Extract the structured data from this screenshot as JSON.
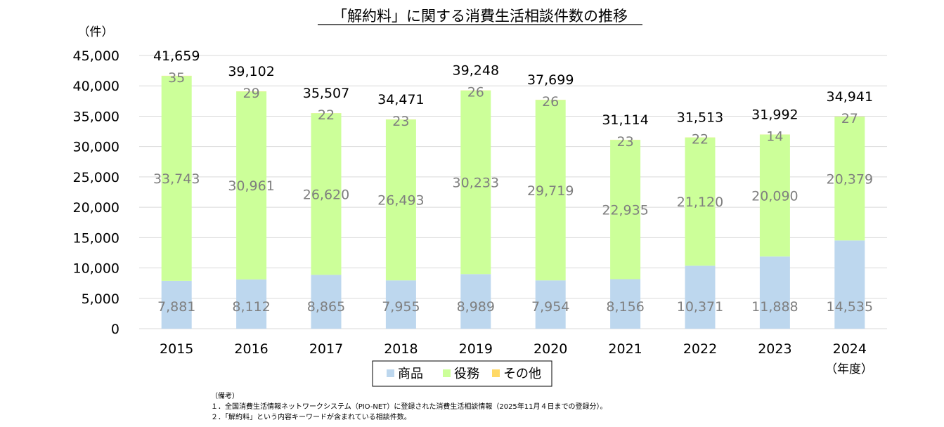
{
  "chart_data": {
    "type": "bar",
    "stacked": true,
    "title": "「解約料」に関する消費生活相談件数の推移",
    "ylabel": "（件）",
    "xlabel": "（年度）",
    "ylim": [
      0,
      45000
    ],
    "yticks": [
      0,
      5000,
      10000,
      15000,
      20000,
      25000,
      30000,
      35000,
      40000,
      45000
    ],
    "ytick_labels": [
      "0",
      "5,000",
      "10,000",
      "15,000",
      "20,000",
      "25,000",
      "30,000",
      "35,000",
      "40,000",
      "45,000"
    ],
    "grid": true,
    "legend_position": "bottom",
    "categories": [
      "2015",
      "2016",
      "2017",
      "2018",
      "2019",
      "2020",
      "2021",
      "2022",
      "2023",
      "2024"
    ],
    "series": [
      {
        "name": "商品",
        "color": "#bdd7ee",
        "values": [
          7881,
          8112,
          8865,
          7955,
          8989,
          7954,
          8156,
          10371,
          11888,
          14535
        ],
        "labels": [
          "7,881",
          "8,112",
          "8,865",
          "7,955",
          "8,989",
          "7,954",
          "8,156",
          "10,371",
          "11,888",
          "14,535"
        ]
      },
      {
        "name": "役務",
        "color": "#ccff99",
        "values": [
          33743,
          30961,
          26620,
          26493,
          30233,
          29719,
          22935,
          21120,
          20090,
          20379
        ],
        "labels": [
          "33,743",
          "30,961",
          "26,620",
          "26,493",
          "30,233",
          "29,719",
          "22,935",
          "21,120",
          "20,090",
          "20,379"
        ]
      },
      {
        "name": "その他",
        "color": "#ffd966",
        "values": [
          35,
          29,
          22,
          23,
          26,
          26,
          23,
          22,
          14,
          27
        ],
        "labels": [
          "35",
          "29",
          "22",
          "23",
          "26",
          "26",
          "23",
          "22",
          "14",
          "27"
        ]
      }
    ],
    "totals": [
      41659,
      39102,
      35507,
      34471,
      39248,
      37699,
      31114,
      31513,
      31992,
      34941
    ],
    "total_labels": [
      "41,659",
      "39,102",
      "35,507",
      "34,471",
      "39,248",
      "37,699",
      "31,114",
      "31,513",
      "31,992",
      "34,941"
    ]
  },
  "notes": {
    "heading": "（備考）",
    "items": [
      "１．全国消費生活情報ネットワークシステム（PIO-NET）に登録された消費生活相談情報（2025年11月４日までの登録分）。",
      "２．「解約料」という内容キーワードが含まれている相談件数。"
    ]
  }
}
